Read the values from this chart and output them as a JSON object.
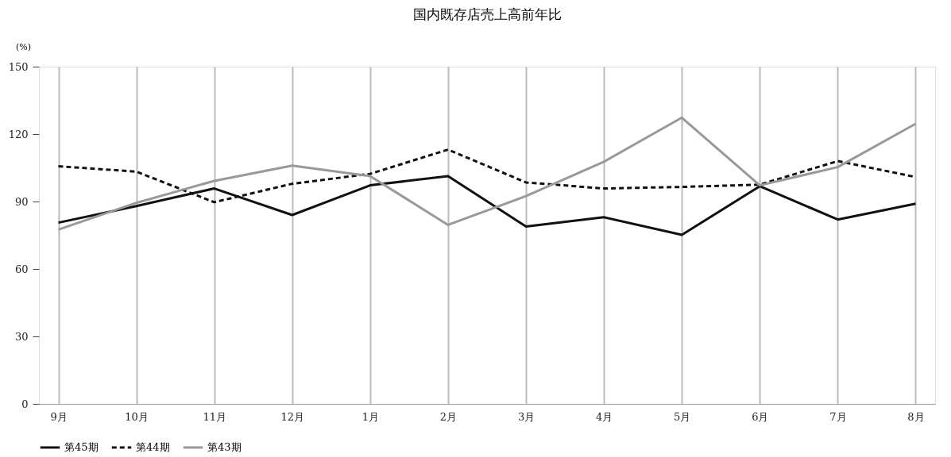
{
  "chart_data": {
    "type": "line",
    "title": "国内既存店売上高前年比",
    "ylabel": "(%)",
    "categories": [
      "9月",
      "10月",
      "11月",
      "12月",
      "1月",
      "2月",
      "3月",
      "4月",
      "5月",
      "6月",
      "7月",
      "8月"
    ],
    "series": [
      {
        "name": "第45期",
        "color": "#111111",
        "line_style": "solid",
        "values": [
          80.6,
          88,
          95.8,
          84,
          97.2,
          101.3,
          78.9,
          83,
          75.2,
          96.8,
          82,
          89
        ]
      },
      {
        "name": "第44期",
        "color": "#111111",
        "line_style": "dashed",
        "values": [
          105.7,
          103.3,
          89.7,
          97.9,
          102.3,
          113.1,
          98.5,
          95.8,
          96.5,
          97.5,
          108,
          100.9
        ]
      },
      {
        "name": "第43期",
        "color": "#999999",
        "line_style": "solid",
        "values": [
          77.5,
          89.4,
          99.2,
          106,
          101.3,
          79.6,
          92.4,
          107.7,
          127.3,
          97.2,
          105.3,
          124.6
        ]
      }
    ],
    "ylim": [
      0,
      150
    ],
    "yticks": [
      0,
      30,
      60,
      90,
      120,
      150
    ],
    "grid": "x",
    "legend": "bottom",
    "marker": "none"
  }
}
